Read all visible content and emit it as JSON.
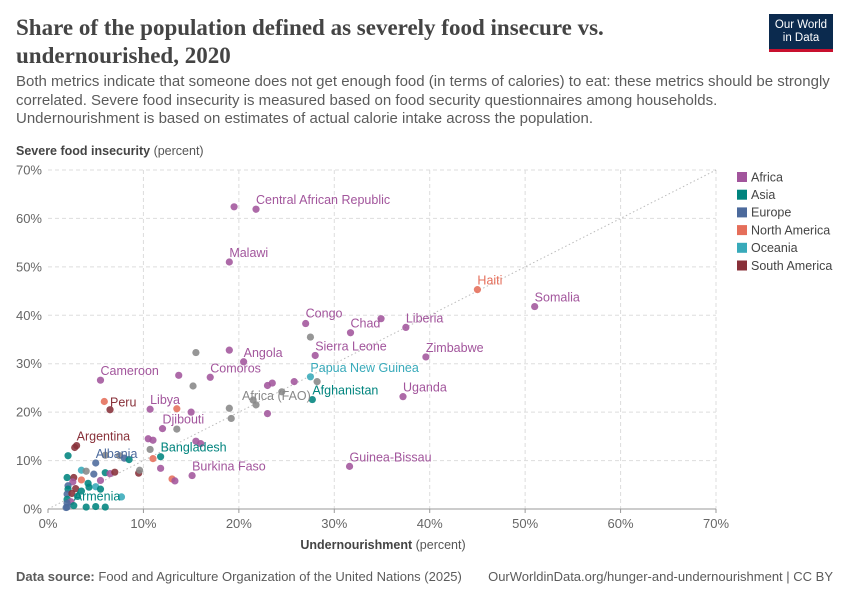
{
  "header": {
    "title": "Share of the population defined as severely food insecure vs. undernourished, 2020",
    "subtitle": "Both metrics indicate that someone does not get enough food (in terms of calories) to eat: these metrics should be strongly correlated. Severe food insecurity is measured based on food security questionnaires among households. Undernourishment is based on estimates of actual calorie intake across the population.",
    "logo_line1": "Our World",
    "logo_line2": "in Data"
  },
  "footer": {
    "source_label": "Data source:",
    "source_text": "Food and Agriculture Organization of the United Nations (2025)",
    "url": "OurWorldinData.org/hunger-and-undernourishment | CC BY"
  },
  "colors": {
    "Africa": "#a2559c",
    "Asia": "#00847e",
    "Europe": "#4c6a9c",
    "North America": "#e56e5a",
    "Oceania": "#38aaba",
    "South America": "#883039",
    "Aggregate": "#888888",
    "grid": "#dddddd",
    "diagonal": "#bbbbbb"
  },
  "chart_data": {
    "type": "scatter",
    "title": "Share of the population defined as severely food insecure vs. undernourished, 2020",
    "xlabel": "Undernourishment",
    "xlabel_unit": "(percent)",
    "ylabel": "Severe food insecurity",
    "ylabel_unit": "(percent)",
    "xlim": [
      0,
      70
    ],
    "ylim": [
      0,
      70
    ],
    "x_ticks": [
      "0%",
      "10%",
      "20%",
      "30%",
      "40%",
      "50%",
      "60%",
      "70%"
    ],
    "y_ticks": [
      "0%",
      "10%",
      "20%",
      "30%",
      "40%",
      "50%",
      "60%",
      "70%"
    ],
    "grid": true,
    "diagonal_reference_line": true,
    "legend_position": "right",
    "legend": [
      "Africa",
      "Asia",
      "Europe",
      "North America",
      "Oceania",
      "South America"
    ],
    "points": [
      {
        "label": "Central African Republic",
        "x": 21.8,
        "y": 61.9,
        "group": "Africa"
      },
      {
        "label": "",
        "x": 19.5,
        "y": 62.4,
        "group": "Africa"
      },
      {
        "label": "Malawi",
        "x": 19.0,
        "y": 51.0,
        "group": "Africa"
      },
      {
        "label": "Haiti",
        "x": 45.0,
        "y": 45.3,
        "group": "North America"
      },
      {
        "label": "Somalia",
        "x": 51.0,
        "y": 41.8,
        "group": "Africa"
      },
      {
        "label": "Congo",
        "x": 27.0,
        "y": 38.3,
        "group": "Africa"
      },
      {
        "label": "Chad",
        "x": 31.7,
        "y": 36.4,
        "group": "Africa"
      },
      {
        "label": "Liberia",
        "x": 37.5,
        "y": 37.5,
        "group": "Africa"
      },
      {
        "label": "",
        "x": 34.9,
        "y": 39.3,
        "group": "Africa"
      },
      {
        "label": "",
        "x": 27.5,
        "y": 35.5,
        "group": "Aggregate"
      },
      {
        "label": "Zimbabwe",
        "x": 39.6,
        "y": 31.4,
        "group": "Africa"
      },
      {
        "label": "Sierra Leone",
        "x": 28.0,
        "y": 31.7,
        "group": "Africa"
      },
      {
        "label": "Angola",
        "x": 20.5,
        "y": 30.4,
        "group": "Africa"
      },
      {
        "label": "",
        "x": 19.0,
        "y": 32.8,
        "group": "Africa"
      },
      {
        "label": "Comoros",
        "x": 17.0,
        "y": 27.2,
        "group": "Africa"
      },
      {
        "label": "",
        "x": 15.5,
        "y": 32.3,
        "group": "Aggregate"
      },
      {
        "label": "",
        "x": 13.7,
        "y": 27.6,
        "group": "Africa"
      },
      {
        "label": "Cameroon",
        "x": 5.5,
        "y": 26.6,
        "group": "Africa"
      },
      {
        "label": "Papua New Guinea",
        "x": 27.5,
        "y": 27.3,
        "group": "Oceania"
      },
      {
        "label": "Afghanistan",
        "x": 27.7,
        "y": 22.6,
        "group": "Asia"
      },
      {
        "label": "",
        "x": 28.2,
        "y": 26.3,
        "group": "Aggregate"
      },
      {
        "label": "",
        "x": 25.8,
        "y": 26.3,
        "group": "Africa"
      },
      {
        "label": "",
        "x": 23.0,
        "y": 25.5,
        "group": "Africa"
      },
      {
        "label": "",
        "x": 23.5,
        "y": 26.0,
        "group": "Africa"
      },
      {
        "label": "",
        "x": 24.5,
        "y": 24.2,
        "group": "Aggregate"
      },
      {
        "label": "",
        "x": 21.5,
        "y": 22.5,
        "group": "Aggregate"
      },
      {
        "label": "",
        "x": 15.2,
        "y": 25.4,
        "group": "Aggregate"
      },
      {
        "label": "Uganda",
        "x": 37.2,
        "y": 23.2,
        "group": "Africa"
      },
      {
        "label": "Africa (FAO)",
        "x": 21.8,
        "y": 21.5,
        "group": "Aggregate"
      },
      {
        "label": "",
        "x": 19.0,
        "y": 20.8,
        "group": "Aggregate"
      },
      {
        "label": "",
        "x": 23.0,
        "y": 19.7,
        "group": "Africa"
      },
      {
        "label": "",
        "x": 19.2,
        "y": 18.7,
        "group": "Aggregate"
      },
      {
        "label": "Libya",
        "x": 10.7,
        "y": 20.6,
        "group": "Africa"
      },
      {
        "label": "Peru",
        "x": 6.5,
        "y": 20.5,
        "group": "South America"
      },
      {
        "label": "",
        "x": 5.9,
        "y": 22.2,
        "group": "North America"
      },
      {
        "label": "",
        "x": 13.5,
        "y": 20.7,
        "group": "North America"
      },
      {
        "label": "",
        "x": 15.0,
        "y": 20.0,
        "group": "Africa"
      },
      {
        "label": "Djibouti",
        "x": 12.0,
        "y": 16.6,
        "group": "Africa"
      },
      {
        "label": "",
        "x": 13.5,
        "y": 16.5,
        "group": "Aggregate"
      },
      {
        "label": "",
        "x": 10.5,
        "y": 14.5,
        "group": "Africa"
      },
      {
        "label": "",
        "x": 11.0,
        "y": 14.2,
        "group": "Africa"
      },
      {
        "label": "",
        "x": 15.5,
        "y": 14.0,
        "group": "Africa"
      },
      {
        "label": "",
        "x": 16.0,
        "y": 13.5,
        "group": "Africa"
      },
      {
        "label": "Bangladesh",
        "x": 11.8,
        "y": 10.8,
        "group": "Asia"
      },
      {
        "label": "",
        "x": 10.7,
        "y": 12.3,
        "group": "Aggregate"
      },
      {
        "label": "",
        "x": 11.0,
        "y": 10.4,
        "group": "North America"
      },
      {
        "label": "",
        "x": 11.8,
        "y": 8.4,
        "group": "Africa"
      },
      {
        "label": "Burkina Faso",
        "x": 15.1,
        "y": 6.9,
        "group": "Africa"
      },
      {
        "label": "",
        "x": 13.0,
        "y": 6.2,
        "group": "North America"
      },
      {
        "label": "",
        "x": 13.3,
        "y": 5.8,
        "group": "Africa"
      },
      {
        "label": "Guinea-Bissau",
        "x": 31.6,
        "y": 8.8,
        "group": "Africa"
      },
      {
        "label": "Argentina",
        "x": 3.0,
        "y": 13.1,
        "group": "South America"
      },
      {
        "label": "",
        "x": 2.8,
        "y": 12.7,
        "group": "South America"
      },
      {
        "label": "",
        "x": 2.1,
        "y": 11.0,
        "group": "Asia"
      },
      {
        "label": "",
        "x": 6.0,
        "y": 11.1,
        "group": "Aggregate"
      },
      {
        "label": "",
        "x": 7.5,
        "y": 11.0,
        "group": "Aggregate"
      },
      {
        "label": "",
        "x": 8.0,
        "y": 10.5,
        "group": "Europe"
      },
      {
        "label": "",
        "x": 8.5,
        "y": 10.2,
        "group": "Asia"
      },
      {
        "label": "Albania",
        "x": 5.0,
        "y": 9.5,
        "group": "Europe"
      },
      {
        "label": "",
        "x": 3.5,
        "y": 8.0,
        "group": "Oceania"
      },
      {
        "label": "",
        "x": 4.0,
        "y": 7.8,
        "group": "Aggregate"
      },
      {
        "label": "",
        "x": 6.0,
        "y": 7.5,
        "group": "Asia"
      },
      {
        "label": "",
        "x": 6.5,
        "y": 7.3,
        "group": "Africa"
      },
      {
        "label": "",
        "x": 7.0,
        "y": 7.6,
        "group": "South America"
      },
      {
        "label": "",
        "x": 9.5,
        "y": 7.4,
        "group": "South America"
      },
      {
        "label": "",
        "x": 9.6,
        "y": 8.0,
        "group": "Aggregate"
      },
      {
        "label": "",
        "x": 4.8,
        "y": 7.2,
        "group": "Europe"
      },
      {
        "label": "",
        "x": 2.0,
        "y": 6.5,
        "group": "Asia"
      },
      {
        "label": "",
        "x": 2.7,
        "y": 6.5,
        "group": "South America"
      },
      {
        "label": "",
        "x": 2.6,
        "y": 5.6,
        "group": "Africa"
      },
      {
        "label": "",
        "x": 3.5,
        "y": 6.0,
        "group": "North America"
      },
      {
        "label": "",
        "x": 4.2,
        "y": 5.3,
        "group": "Asia"
      },
      {
        "label": "",
        "x": 5.5,
        "y": 5.9,
        "group": "Africa"
      },
      {
        "label": "",
        "x": 2.1,
        "y": 4.8,
        "group": "Europe"
      },
      {
        "label": "",
        "x": 2.1,
        "y": 4.1,
        "group": "Asia"
      },
      {
        "label": "",
        "x": 2.9,
        "y": 4.2,
        "group": "South America"
      },
      {
        "label": "",
        "x": 3.5,
        "y": 3.7,
        "group": "Asia"
      },
      {
        "label": "",
        "x": 4.3,
        "y": 4.5,
        "group": "Asia"
      },
      {
        "label": "",
        "x": 5.0,
        "y": 4.6,
        "group": "Oceania"
      },
      {
        "label": "",
        "x": 5.5,
        "y": 4.1,
        "group": "Asia"
      },
      {
        "label": "",
        "x": 2.0,
        "y": 3.1,
        "group": "Europe"
      },
      {
        "label": "",
        "x": 2.5,
        "y": 3.2,
        "group": "South America"
      },
      {
        "label": "",
        "x": 3.1,
        "y": 2.6,
        "group": "Asia"
      },
      {
        "label": "",
        "x": 2.0,
        "y": 2.0,
        "group": "Asia"
      },
      {
        "label": "",
        "x": 2.4,
        "y": 1.5,
        "group": "Africa"
      },
      {
        "label": "",
        "x": 2.0,
        "y": 1.2,
        "group": "Europe"
      },
      {
        "label": "Armenia",
        "x": 2.7,
        "y": 0.7,
        "group": "Asia"
      },
      {
        "label": "",
        "x": 2.0,
        "y": 0.4,
        "group": "Europe"
      },
      {
        "label": "",
        "x": 1.9,
        "y": 0.3,
        "group": "Europe"
      },
      {
        "label": "",
        "x": 4.0,
        "y": 0.4,
        "group": "Asia"
      },
      {
        "label": "",
        "x": 5.0,
        "y": 0.5,
        "group": "Asia"
      },
      {
        "label": "",
        "x": 6.0,
        "y": 0.4,
        "group": "Asia"
      },
      {
        "label": "",
        "x": 7.7,
        "y": 2.5,
        "group": "Oceania"
      }
    ]
  }
}
